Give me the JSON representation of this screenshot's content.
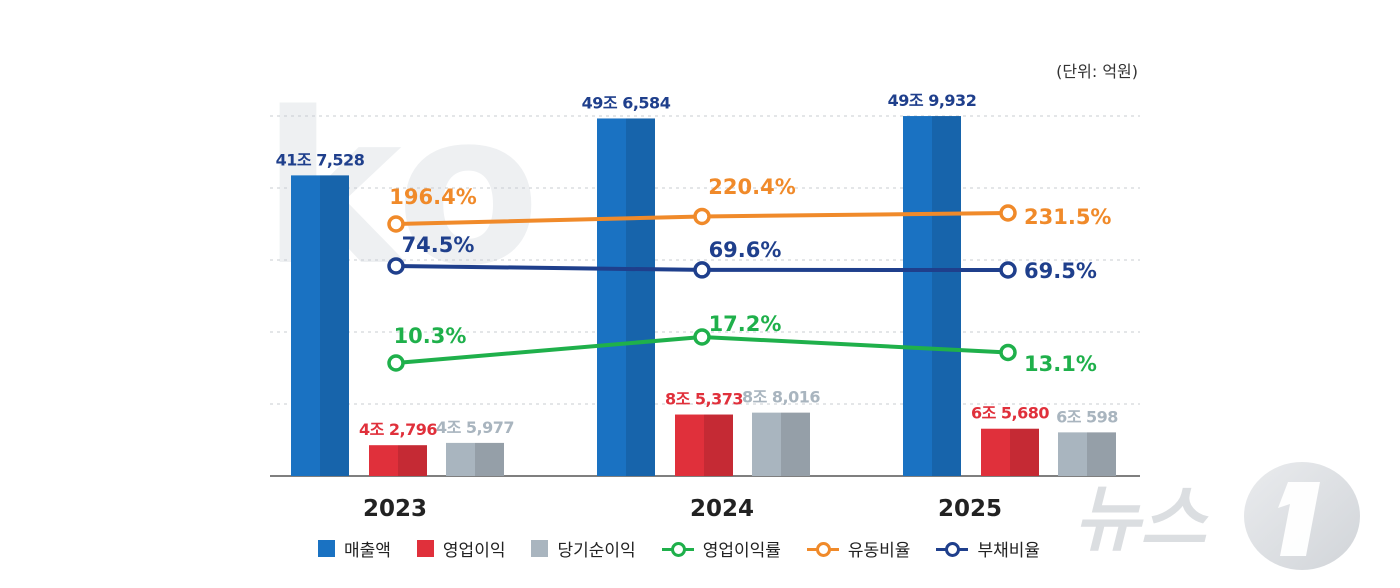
{
  "unit_label": "(단위: 억원)",
  "colors": {
    "revenue": "#1a72c2",
    "op_profit": "#e0303b",
    "net_profit": "#a9b5bf",
    "op_margin": "#1fb04b",
    "current_ratio": "#f08a2a",
    "debt_ratio": "#1f3f8c"
  },
  "legend": [
    {
      "label": "매출액",
      "kind": "bar",
      "color_key": "revenue"
    },
    {
      "label": "영업이익",
      "kind": "bar",
      "color_key": "op_profit"
    },
    {
      "label": "당기순이익",
      "kind": "bar",
      "color_key": "net_profit"
    },
    {
      "label": "영업이익률",
      "kind": "line",
      "color_key": "op_margin"
    },
    {
      "label": "유동비율",
      "kind": "line",
      "color_key": "current_ratio"
    },
    {
      "label": "부채비율",
      "kind": "line",
      "color_key": "debt_ratio"
    }
  ],
  "watermark": "뉴스1",
  "chart_data": {
    "type": "bar",
    "categories": [
      "2023",
      "2024",
      "2025"
    ],
    "series": [
      {
        "name": "매출액",
        "kind": "bar",
        "color_key": "revenue",
        "values": [
          417528,
          496584,
          499932
        ],
        "labels": [
          "41조 7,528",
          "49조 6,584",
          "49조 9,932"
        ]
      },
      {
        "name": "영업이익",
        "kind": "bar",
        "color_key": "op_profit",
        "values": [
          42796,
          85373,
          65680
        ],
        "labels": [
          "4조 2,796",
          "8조 5,373",
          "6조 5,680"
        ]
      },
      {
        "name": "당기순이익",
        "kind": "bar",
        "color_key": "net_profit",
        "values": [
          45977,
          88016,
          60598
        ],
        "labels": [
          "4조 5,977",
          "8조 8,016",
          "6조 598"
        ]
      },
      {
        "name": "영업이익률",
        "kind": "line",
        "color_key": "op_margin",
        "values": [
          10.3,
          17.2,
          13.1
        ],
        "labels": [
          "10.3%",
          "17.2%",
          "13.1%"
        ]
      },
      {
        "name": "유동비율",
        "kind": "line",
        "color_key": "current_ratio",
        "values": [
          196.4,
          220.4,
          231.5
        ],
        "labels": [
          "196.4%",
          "220.4%",
          "231.5%"
        ]
      },
      {
        "name": "부채비율",
        "kind": "line",
        "color_key": "debt_ratio",
        "values": [
          74.5,
          69.6,
          69.5
        ],
        "labels": [
          "74.5%",
          "69.6%",
          "69.5%"
        ]
      }
    ],
    "grid": true,
    "legend_position": "bottom"
  }
}
